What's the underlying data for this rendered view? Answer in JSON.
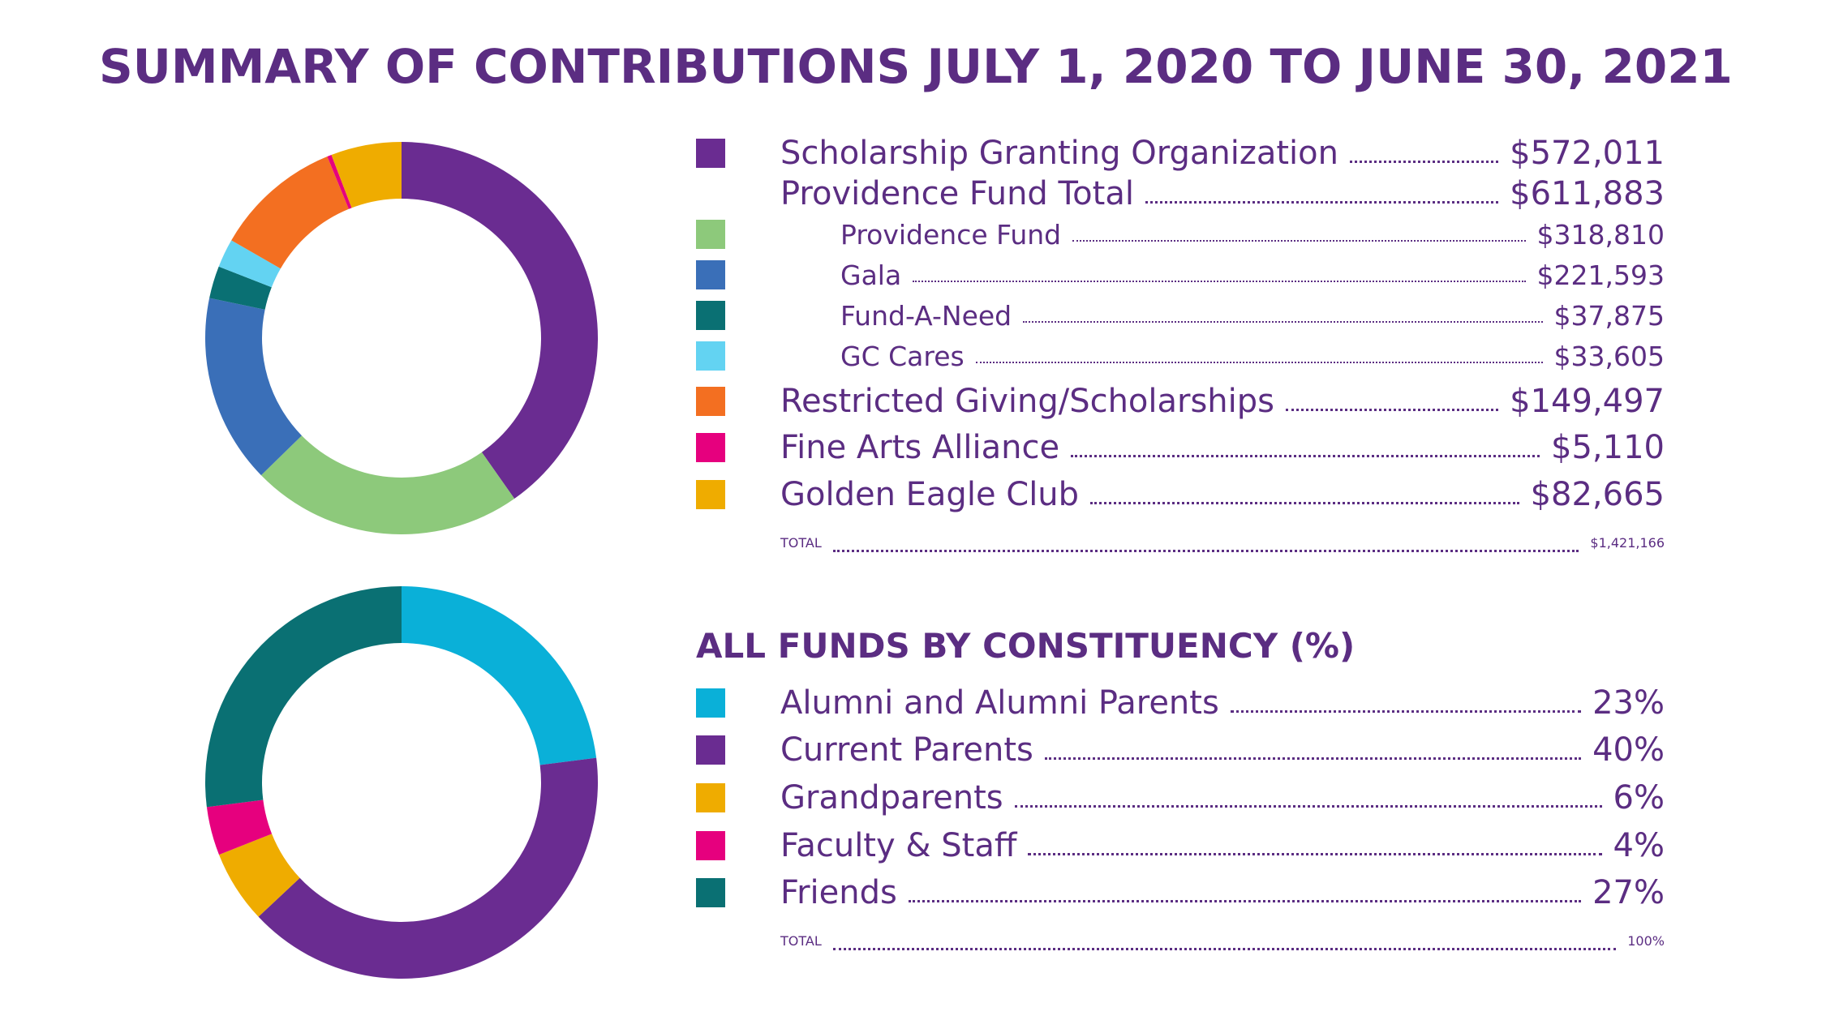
{
  "title": "SUMMARY OF CONTRIBUTIONS JULY 1, 2020 TO JUNE 30, 2021",
  "colors": {
    "purple": "#6a2c91",
    "green": "#8dc97b",
    "blue": "#3a6fb8",
    "teal": "#0a7073",
    "lightblue": "#63d3f2",
    "orange": "#f36f21",
    "magenta": "#e6007e",
    "gold": "#efac00",
    "cyan": "#0ab0d8",
    "text": "#5b2d82"
  },
  "legend1": {
    "items": [
      {
        "label": "Scholarship Granting Organization",
        "value": "$572,011",
        "color": "#6a2c91",
        "level": "main"
      },
      {
        "label": "Providence Fund Total",
        "value": "$611,883",
        "color": "",
        "level": "main"
      },
      {
        "label": "Providence Fund",
        "value": "$318,810",
        "color": "#8dc97b",
        "level": "sub"
      },
      {
        "label": "Gala",
        "value": "$221,593",
        "color": "#3a6fb8",
        "level": "sub"
      },
      {
        "label": "Fund-A-Need",
        "value": "$37,875",
        "color": "#0a7073",
        "level": "sub"
      },
      {
        "label": "GC Cares",
        "value": "$33,605",
        "color": "#63d3f2",
        "level": "sub"
      },
      {
        "label": "Restricted Giving/Scholarships",
        "value": "$149,497",
        "color": "#f36f21",
        "level": "main"
      },
      {
        "label": "Fine Arts Alliance",
        "value": "$5,110",
        "color": "#e6007e",
        "level": "main"
      },
      {
        "label": "Golden Eagle Club",
        "value": "$82,665",
        "color": "#efac00",
        "level": "main"
      },
      {
        "label": "TOTAL",
        "value": "$1,421,166",
        "color": "",
        "level": "total"
      }
    ]
  },
  "section2_title": "ALL FUNDS BY CONSTITUENCY (%)",
  "legend2": {
    "items": [
      {
        "label": "Alumni and Alumni Parents",
        "value": "23%",
        "color": "#0ab0d8",
        "level": "main"
      },
      {
        "label": "Current Parents",
        "value": "40%",
        "color": "#6a2c91",
        "level": "main"
      },
      {
        "label": "Grandparents",
        "value": "6%",
        "color": "#efac00",
        "level": "main"
      },
      {
        "label": "Faculty & Staff",
        "value": "4%",
        "color": "#e6007e",
        "level": "main"
      },
      {
        "label": "Friends",
        "value": "27%",
        "color": "#0a7073",
        "level": "main"
      },
      {
        "label": "TOTAL",
        "value": "100%",
        "color": "",
        "level": "total"
      }
    ]
  },
  "chart_data": [
    {
      "type": "pie",
      "variant": "donut",
      "categories": [
        "Scholarship Granting Organization",
        "Providence Fund",
        "Gala",
        "Fund-A-Need",
        "GC Cares",
        "Restricted Giving/Scholarships",
        "Fine Arts Alliance",
        "Golden Eagle Club"
      ],
      "values": [
        572011,
        318810,
        221593,
        37875,
        33605,
        149497,
        5110,
        82665
      ],
      "colors": [
        "#6a2c91",
        "#8dc97b",
        "#3a6fb8",
        "#0a7073",
        "#63d3f2",
        "#f36f21",
        "#e6007e",
        "#efac00"
      ],
      "total": 1421166
    },
    {
      "type": "pie",
      "variant": "donut",
      "categories": [
        "Alumni and Alumni Parents",
        "Current Parents",
        "Grandparents",
        "Faculty & Staff",
        "Friends"
      ],
      "values": [
        23,
        40,
        6,
        4,
        27
      ],
      "colors": [
        "#0ab0d8",
        "#6a2c91",
        "#efac00",
        "#e6007e",
        "#0a7073"
      ],
      "total": 100
    }
  ]
}
